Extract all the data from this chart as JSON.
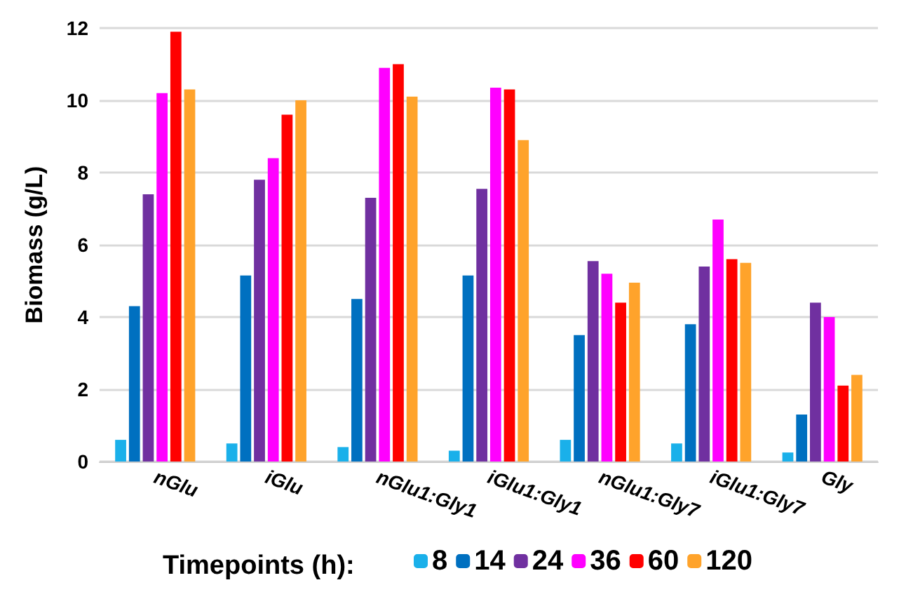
{
  "chart_data": {
    "type": "bar",
    "ylabel": "Biomass (g/L)",
    "legend_title": "Timepoints (h):",
    "categories": [
      "nGlu",
      "iGlu",
      "nGlu1:Gly1",
      "iGlu1:Gly1",
      "nGlu1:Gly7",
      "iGlu1:Gly7",
      "Gly"
    ],
    "series": [
      {
        "name": "8",
        "color": "#1ab0ea",
        "values": [
          0.6,
          0.5,
          0.4,
          0.3,
          0.6,
          0.5,
          0.25
        ]
      },
      {
        "name": "14",
        "color": "#0070c0",
        "values": [
          4.3,
          5.15,
          4.5,
          5.15,
          3.5,
          3.8,
          1.3
        ]
      },
      {
        "name": "24",
        "color": "#7030a0",
        "values": [
          7.4,
          7.8,
          7.3,
          7.55,
          5.55,
          5.4,
          4.4
        ]
      },
      {
        "name": "36",
        "color": "#ff00ff",
        "values": [
          10.2,
          8.4,
          10.9,
          10.35,
          5.2,
          6.7,
          4.0
        ]
      },
      {
        "name": "60",
        "color": "#ff0000",
        "values": [
          11.9,
          9.6,
          11.0,
          10.3,
          4.4,
          5.6,
          2.1
        ]
      },
      {
        "name": "120",
        "color": "#ffa32b",
        "values": [
          10.3,
          10.0,
          10.1,
          8.9,
          4.95,
          5.5,
          2.4
        ]
      }
    ],
    "ylim": [
      0,
      12
    ],
    "yticks": [
      0,
      2,
      4,
      6,
      8,
      10,
      12
    ],
    "grid": "y",
    "legend": "bottom"
  }
}
